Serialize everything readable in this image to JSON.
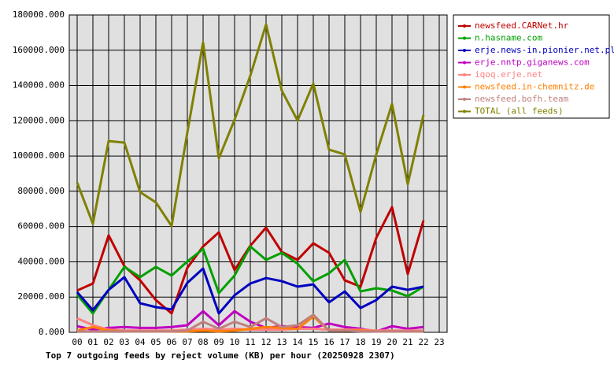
{
  "chart_data": {
    "type": "line",
    "title": "Top 7 outgoing feeds by reject volume (KB) per hour (20250928 2307)",
    "categories": [
      "00",
      "01",
      "02",
      "03",
      "04",
      "05",
      "06",
      "07",
      "08",
      "09",
      "10",
      "11",
      "12",
      "13",
      "14",
      "15",
      "16",
      "17",
      "18",
      "19",
      "20",
      "21",
      "22",
      "23"
    ],
    "ylim": [
      0,
      180000
    ],
    "yticks": [
      {
        "value": 0,
        "label": "0.000"
      },
      {
        "value": 20000,
        "label": "20000.000"
      },
      {
        "value": 40000,
        "label": "40000.000"
      },
      {
        "value": 60000,
        "label": "60000.000"
      },
      {
        "value": 80000,
        "label": "80000.000"
      },
      {
        "value": 100000,
        "label": "100000.000"
      },
      {
        "value": 120000,
        "label": "120000.000"
      },
      {
        "value": 140000,
        "label": "140000.000"
      },
      {
        "value": 160000,
        "label": "160000.000"
      },
      {
        "value": 180000,
        "label": "180000.000"
      }
    ],
    "grid": true,
    "legend": "top-right",
    "series": [
      {
        "name": "newsfeed.CARNet.hr",
        "color": "#c00000",
        "values": [
          23700,
          27700,
          55000,
          37500,
          29500,
          18300,
          10700,
          36600,
          48700,
          56700,
          35300,
          49100,
          59400,
          45600,
          41100,
          50500,
          45100,
          29500,
          25900,
          53600,
          71000,
          33100,
          63400,
          null
        ]
      },
      {
        "name": "n.hasname.com",
        "color": "#00a000",
        "values": [
          21400,
          10700,
          24100,
          37100,
          31300,
          37100,
          32200,
          40200,
          47300,
          22300,
          32200,
          48700,
          41100,
          45100,
          38900,
          29000,
          33500,
          41100,
          23200,
          25000,
          23700,
          20500,
          25900,
          null
        ]
      },
      {
        "name": "erje.news-in.pionier.net.pl",
        "color": "#0000c0",
        "values": [
          22800,
          12500,
          24100,
          31300,
          16500,
          14300,
          13000,
          28100,
          36200,
          10700,
          21000,
          27700,
          30800,
          29000,
          25900,
          27200,
          17000,
          23200,
          13800,
          18300,
          25900,
          24100,
          25900,
          null
        ]
      },
      {
        "name": "erje.nntp.giganews.com",
        "color": "#c000c0",
        "values": [
          3500,
          1500,
          2500,
          3000,
          2500,
          2500,
          3000,
          4000,
          12000,
          4000,
          12000,
          6000,
          2500,
          3500,
          3000,
          2500,
          5000,
          3000,
          2000,
          500,
          3500,
          2000,
          3000,
          null
        ]
      },
      {
        "name": "iqoq.erje.net",
        "color": "#ff8080",
        "values": [
          8000,
          4000,
          1500,
          1000,
          1000,
          1000,
          1000,
          1500,
          2000,
          1500,
          2000,
          1500,
          1500,
          1500,
          2000,
          2000,
          1500,
          1500,
          1500,
          1000,
          1000,
          1000,
          1000,
          null
        ]
      },
      {
        "name": "newsfeed.in-chemnitz.de",
        "color": "#ff8000",
        "values": [
          1000,
          3000,
          1000,
          500,
          500,
          500,
          500,
          500,
          1000,
          500,
          1000,
          2000,
          3000,
          2500,
          2000,
          9000,
          1000,
          1000,
          1000,
          500,
          500,
          500,
          500,
          null
        ]
      },
      {
        "name": "newsfeed.bofh.team",
        "color": "#c08080",
        "values": [
          500,
          500,
          500,
          500,
          500,
          500,
          500,
          1000,
          6000,
          2000,
          6000,
          3000,
          8000,
          3000,
          4000,
          10000,
          1000,
          1000,
          500,
          500,
          500,
          500,
          500,
          null
        ]
      },
      {
        "name": "TOTAL (all feeds)",
        "color": "#808000",
        "values": [
          84900,
          61600,
          108500,
          107600,
          79500,
          73700,
          60300,
          113400,
          164400,
          98700,
          120600,
          145600,
          174600,
          137100,
          120100,
          141100,
          103600,
          100900,
          68300,
          100900,
          129500,
          84000,
          123300,
          null
        ]
      }
    ]
  }
}
